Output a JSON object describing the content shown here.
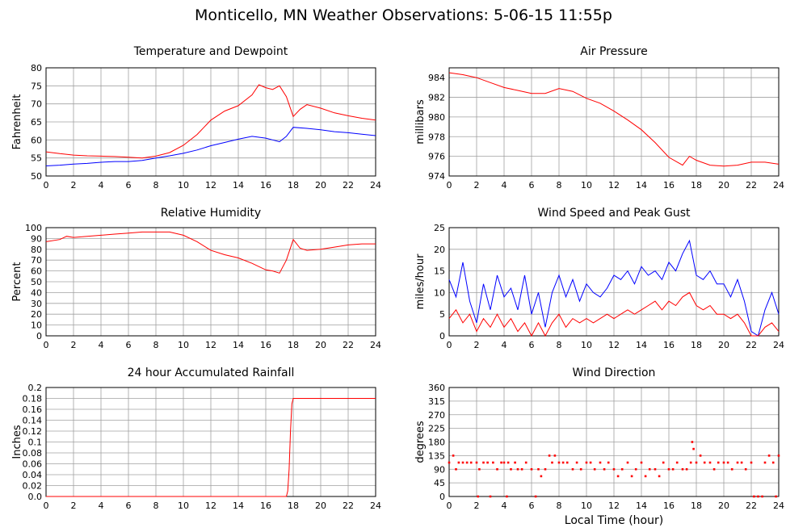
{
  "title": "Monticello, MN Weather Observations: 5-06-15 11:55p",
  "colors": {
    "primary": "#ff0000",
    "secondary": "#0000ff",
    "grid": "#a0a0a0",
    "axis": "#000000"
  },
  "chart_data": [
    {
      "id": "temperature",
      "type": "line",
      "title": "Temperature and Dewpoint",
      "xlabel": "",
      "ylabel": "Fahrenheit",
      "xlim": [
        0,
        24
      ],
      "ylim": [
        50,
        80
      ],
      "xticks": [
        0,
        2,
        4,
        6,
        8,
        10,
        12,
        14,
        16,
        18,
        20,
        22,
        24
      ],
      "yticks": [
        50,
        55,
        60,
        65,
        70,
        75,
        80
      ],
      "grid": true,
      "series": [
        {
          "color": "#ff0000",
          "x": [
            0,
            1,
            2,
            3,
            4,
            5,
            6,
            7,
            8,
            9,
            10,
            11,
            12,
            13,
            14,
            15,
            15.5,
            16,
            16.5,
            17,
            17.5,
            18,
            18.5,
            19,
            20,
            21,
            22,
            23,
            24
          ],
          "y": [
            56.7,
            56.2,
            55.8,
            55.6,
            55.5,
            55.4,
            55.2,
            55.0,
            55.5,
            56.5,
            58.5,
            61.5,
            65.5,
            68.0,
            69.5,
            72.5,
            75.3,
            74.5,
            74.0,
            75.0,
            72.0,
            66.5,
            68.5,
            69.8,
            68.8,
            67.5,
            66.7,
            66.0,
            65.5
          ]
        },
        {
          "color": "#0000ff",
          "x": [
            0,
            1,
            2,
            3,
            4,
            5,
            6,
            7,
            8,
            9,
            10,
            11,
            12,
            13,
            14,
            15,
            16,
            16.5,
            17,
            17.5,
            18,
            19,
            20,
            21,
            22,
            23,
            24
          ],
          "y": [
            52.8,
            53.0,
            53.3,
            53.5,
            53.8,
            54.0,
            54.0,
            54.3,
            55.0,
            55.6,
            56.3,
            57.2,
            58.4,
            59.3,
            60.2,
            61.0,
            60.5,
            60.0,
            59.5,
            61.0,
            63.5,
            63.2,
            62.8,
            62.3,
            62.0,
            61.6,
            61.2
          ]
        }
      ]
    },
    {
      "id": "pressure",
      "type": "line",
      "title": "Air Pressure",
      "xlabel": "",
      "ylabel": "millibars",
      "xlim": [
        0,
        24
      ],
      "ylim": [
        974,
        985
      ],
      "xticks": [
        0,
        2,
        4,
        6,
        8,
        10,
        12,
        14,
        16,
        18,
        20,
        22,
        24
      ],
      "yticks": [
        974,
        976,
        978,
        980,
        982,
        984
      ],
      "grid": true,
      "series": [
        {
          "color": "#ff0000",
          "x": [
            0,
            1,
            2,
            3,
            4,
            5,
            6,
            7,
            8,
            9,
            10,
            11,
            12,
            13,
            14,
            15,
            16,
            17,
            17.5,
            18,
            19,
            20,
            21,
            22,
            23,
            24
          ],
          "y": [
            984.5,
            984.3,
            984.0,
            983.5,
            983.0,
            982.7,
            982.4,
            982.4,
            982.9,
            982.6,
            981.9,
            981.4,
            980.6,
            979.7,
            978.7,
            977.4,
            975.9,
            975.1,
            976.0,
            975.6,
            975.1,
            975.0,
            975.1,
            975.4,
            975.4,
            975.2
          ]
        }
      ]
    },
    {
      "id": "humidity",
      "type": "line",
      "title": "Relative Humidity",
      "xlabel": "",
      "ylabel": "Percent",
      "xlim": [
        0,
        24
      ],
      "ylim": [
        0,
        100
      ],
      "xticks": [
        0,
        2,
        4,
        6,
        8,
        10,
        12,
        14,
        16,
        18,
        20,
        22,
        24
      ],
      "yticks": [
        0,
        10,
        20,
        30,
        40,
        50,
        60,
        70,
        80,
        90,
        100
      ],
      "grid": true,
      "series": [
        {
          "color": "#ff0000",
          "x": [
            0,
            1,
            1.5,
            2,
            3,
            4,
            5,
            6,
            7,
            8,
            9,
            10,
            11,
            12,
            13,
            14,
            15,
            16,
            16.5,
            17,
            17.5,
            18,
            18.5,
            19,
            20,
            21,
            22,
            23,
            24
          ],
          "y": [
            87,
            89,
            92,
            91,
            92,
            93,
            94,
            95,
            96,
            96,
            96,
            93,
            87,
            79,
            75,
            72,
            67,
            61,
            60,
            58,
            70,
            89,
            81,
            79,
            80,
            82,
            84,
            85,
            85
          ]
        }
      ]
    },
    {
      "id": "wind_speed",
      "type": "line",
      "title": "Wind Speed and Peak Gust",
      "xlabel": "",
      "ylabel": "miles/hour",
      "xlim": [
        0,
        24
      ],
      "ylim": [
        0,
        25
      ],
      "xticks": [
        0,
        2,
        4,
        6,
        8,
        10,
        12,
        14,
        16,
        18,
        20,
        22,
        24
      ],
      "yticks": [
        0,
        5,
        10,
        15,
        20,
        25
      ],
      "grid": true,
      "series": [
        {
          "color": "#0000ff",
          "x": [
            0,
            0.5,
            1,
            1.5,
            2,
            2.5,
            3,
            3.5,
            4,
            4.5,
            5,
            5.5,
            6,
            6.5,
            7,
            7.5,
            8,
            8.5,
            9,
            9.5,
            10,
            10.5,
            11,
            11.5,
            12,
            12.5,
            13,
            13.5,
            14,
            14.5,
            15,
            15.5,
            16,
            16.5,
            17,
            17.5,
            18,
            18.5,
            19,
            19.5,
            20,
            20.5,
            21,
            21.5,
            22,
            22.5,
            23,
            23.5,
            24
          ],
          "y": [
            13,
            9,
            17,
            8,
            3,
            12,
            6,
            14,
            9,
            11,
            6,
            14,
            5,
            10,
            2,
            10,
            14,
            9,
            13,
            8,
            12,
            10,
            9,
            11,
            14,
            13,
            15,
            12,
            16,
            14,
            15,
            13,
            17,
            15,
            19,
            22,
            14,
            13,
            15,
            12,
            12,
            9,
            13,
            8,
            1,
            0,
            6,
            10,
            5
          ]
        },
        {
          "color": "#ff0000",
          "x": [
            0,
            0.5,
            1,
            1.5,
            2,
            2.5,
            3,
            3.5,
            4,
            4.5,
            5,
            5.5,
            6,
            6.5,
            7,
            7.5,
            8,
            8.5,
            9,
            9.5,
            10,
            10.5,
            11,
            11.5,
            12,
            12.5,
            13,
            13.5,
            14,
            14.5,
            15,
            15.5,
            16,
            16.5,
            17,
            17.5,
            18,
            18.5,
            19,
            19.5,
            20,
            20.5,
            21,
            21.5,
            22,
            22.5,
            23,
            23.5,
            24
          ],
          "y": [
            4,
            6,
            3,
            5,
            1,
            4,
            2,
            5,
            2,
            4,
            1,
            3,
            0,
            3,
            0,
            3,
            5,
            2,
            4,
            3,
            4,
            3,
            4,
            5,
            4,
            5,
            6,
            5,
            6,
            7,
            8,
            6,
            8,
            7,
            9,
            10,
            7,
            6,
            7,
            5,
            5,
            4,
            5,
            3,
            0,
            0,
            2,
            3,
            1
          ]
        }
      ]
    },
    {
      "id": "rainfall",
      "type": "line",
      "title": "24 hour Accumulated Rainfall",
      "xlabel": "",
      "ylabel": "Inches",
      "xlim": [
        0,
        24
      ],
      "ylim": [
        0,
        0.2
      ],
      "xticks": [
        0,
        2,
        4,
        6,
        8,
        10,
        12,
        14,
        16,
        18,
        20,
        22,
        24
      ],
      "yticks": [
        "0.0",
        "0.02",
        "0.04",
        "0.06",
        "0.08",
        "0.1",
        "0.12",
        "0.14",
        "0.16",
        "0.18",
        "0.2"
      ],
      "grid": true,
      "series": [
        {
          "color": "#ff0000",
          "x": [
            0,
            17.5,
            17.6,
            17.7,
            17.8,
            17.9,
            18,
            24
          ],
          "y": [
            0,
            0,
            0.01,
            0.05,
            0.12,
            0.17,
            0.18,
            0.18
          ]
        }
      ]
    },
    {
      "id": "wind_direction",
      "type": "scatter",
      "title": "Wind Direction",
      "xlabel": "Local Time (hour)",
      "ylabel": "degrees",
      "xlim": [
        0,
        24
      ],
      "ylim": [
        0,
        360
      ],
      "xticks": [
        0,
        2,
        4,
        6,
        8,
        10,
        12,
        14,
        16,
        18,
        20,
        22,
        24
      ],
      "yticks": [
        0,
        45,
        90,
        135,
        180,
        225,
        270,
        315,
        360
      ],
      "grid": true,
      "series": [
        {
          "color": "#ff0000",
          "x": [
            0,
            0.3,
            0.5,
            0.7,
            1,
            1.3,
            1.6,
            2,
            2.1,
            2.2,
            2.5,
            2.8,
            3,
            3.2,
            3.5,
            3.8,
            4,
            4.2,
            4.3,
            4.5,
            4.8,
            5,
            5.3,
            5.6,
            6,
            6.3,
            6.5,
            6.7,
            7,
            7.3,
            7.5,
            7.7,
            8,
            8.3,
            8.6,
            9,
            9.3,
            9.6,
            10,
            10.3,
            10.6,
            11,
            11.3,
            11.6,
            12,
            12.3,
            12.6,
            13,
            13.3,
            13.6,
            14,
            14.3,
            14.6,
            15,
            15.3,
            15.6,
            16,
            16.3,
            16.6,
            17,
            17.3,
            17.6,
            17.7,
            17.8,
            18,
            18.3,
            18.6,
            19,
            19.3,
            19.6,
            20,
            20.3,
            20.6,
            21,
            21.3,
            21.6,
            22,
            22.2,
            22.5,
            22.8,
            23,
            23.3,
            23.6,
            23.8,
            24
          ],
          "y": [
            112,
            135,
            90,
            112,
            112,
            112,
            112,
            112,
            0,
            90,
            112,
            112,
            0,
            112,
            90,
            112,
            112,
            0,
            112,
            90,
            112,
            90,
            90,
            112,
            90,
            0,
            90,
            67,
            90,
            135,
            112,
            135,
            112,
            112,
            112,
            90,
            112,
            90,
            112,
            112,
            90,
            112,
            90,
            112,
            90,
            67,
            90,
            112,
            67,
            90,
            112,
            67,
            90,
            90,
            67,
            112,
            90,
            90,
            112,
            90,
            90,
            112,
            180,
            157,
            112,
            135,
            112,
            112,
            90,
            112,
            112,
            112,
            90,
            112,
            112,
            90,
            112,
            0,
            0,
            0,
            112,
            135,
            112,
            0,
            135
          ]
        }
      ]
    }
  ]
}
